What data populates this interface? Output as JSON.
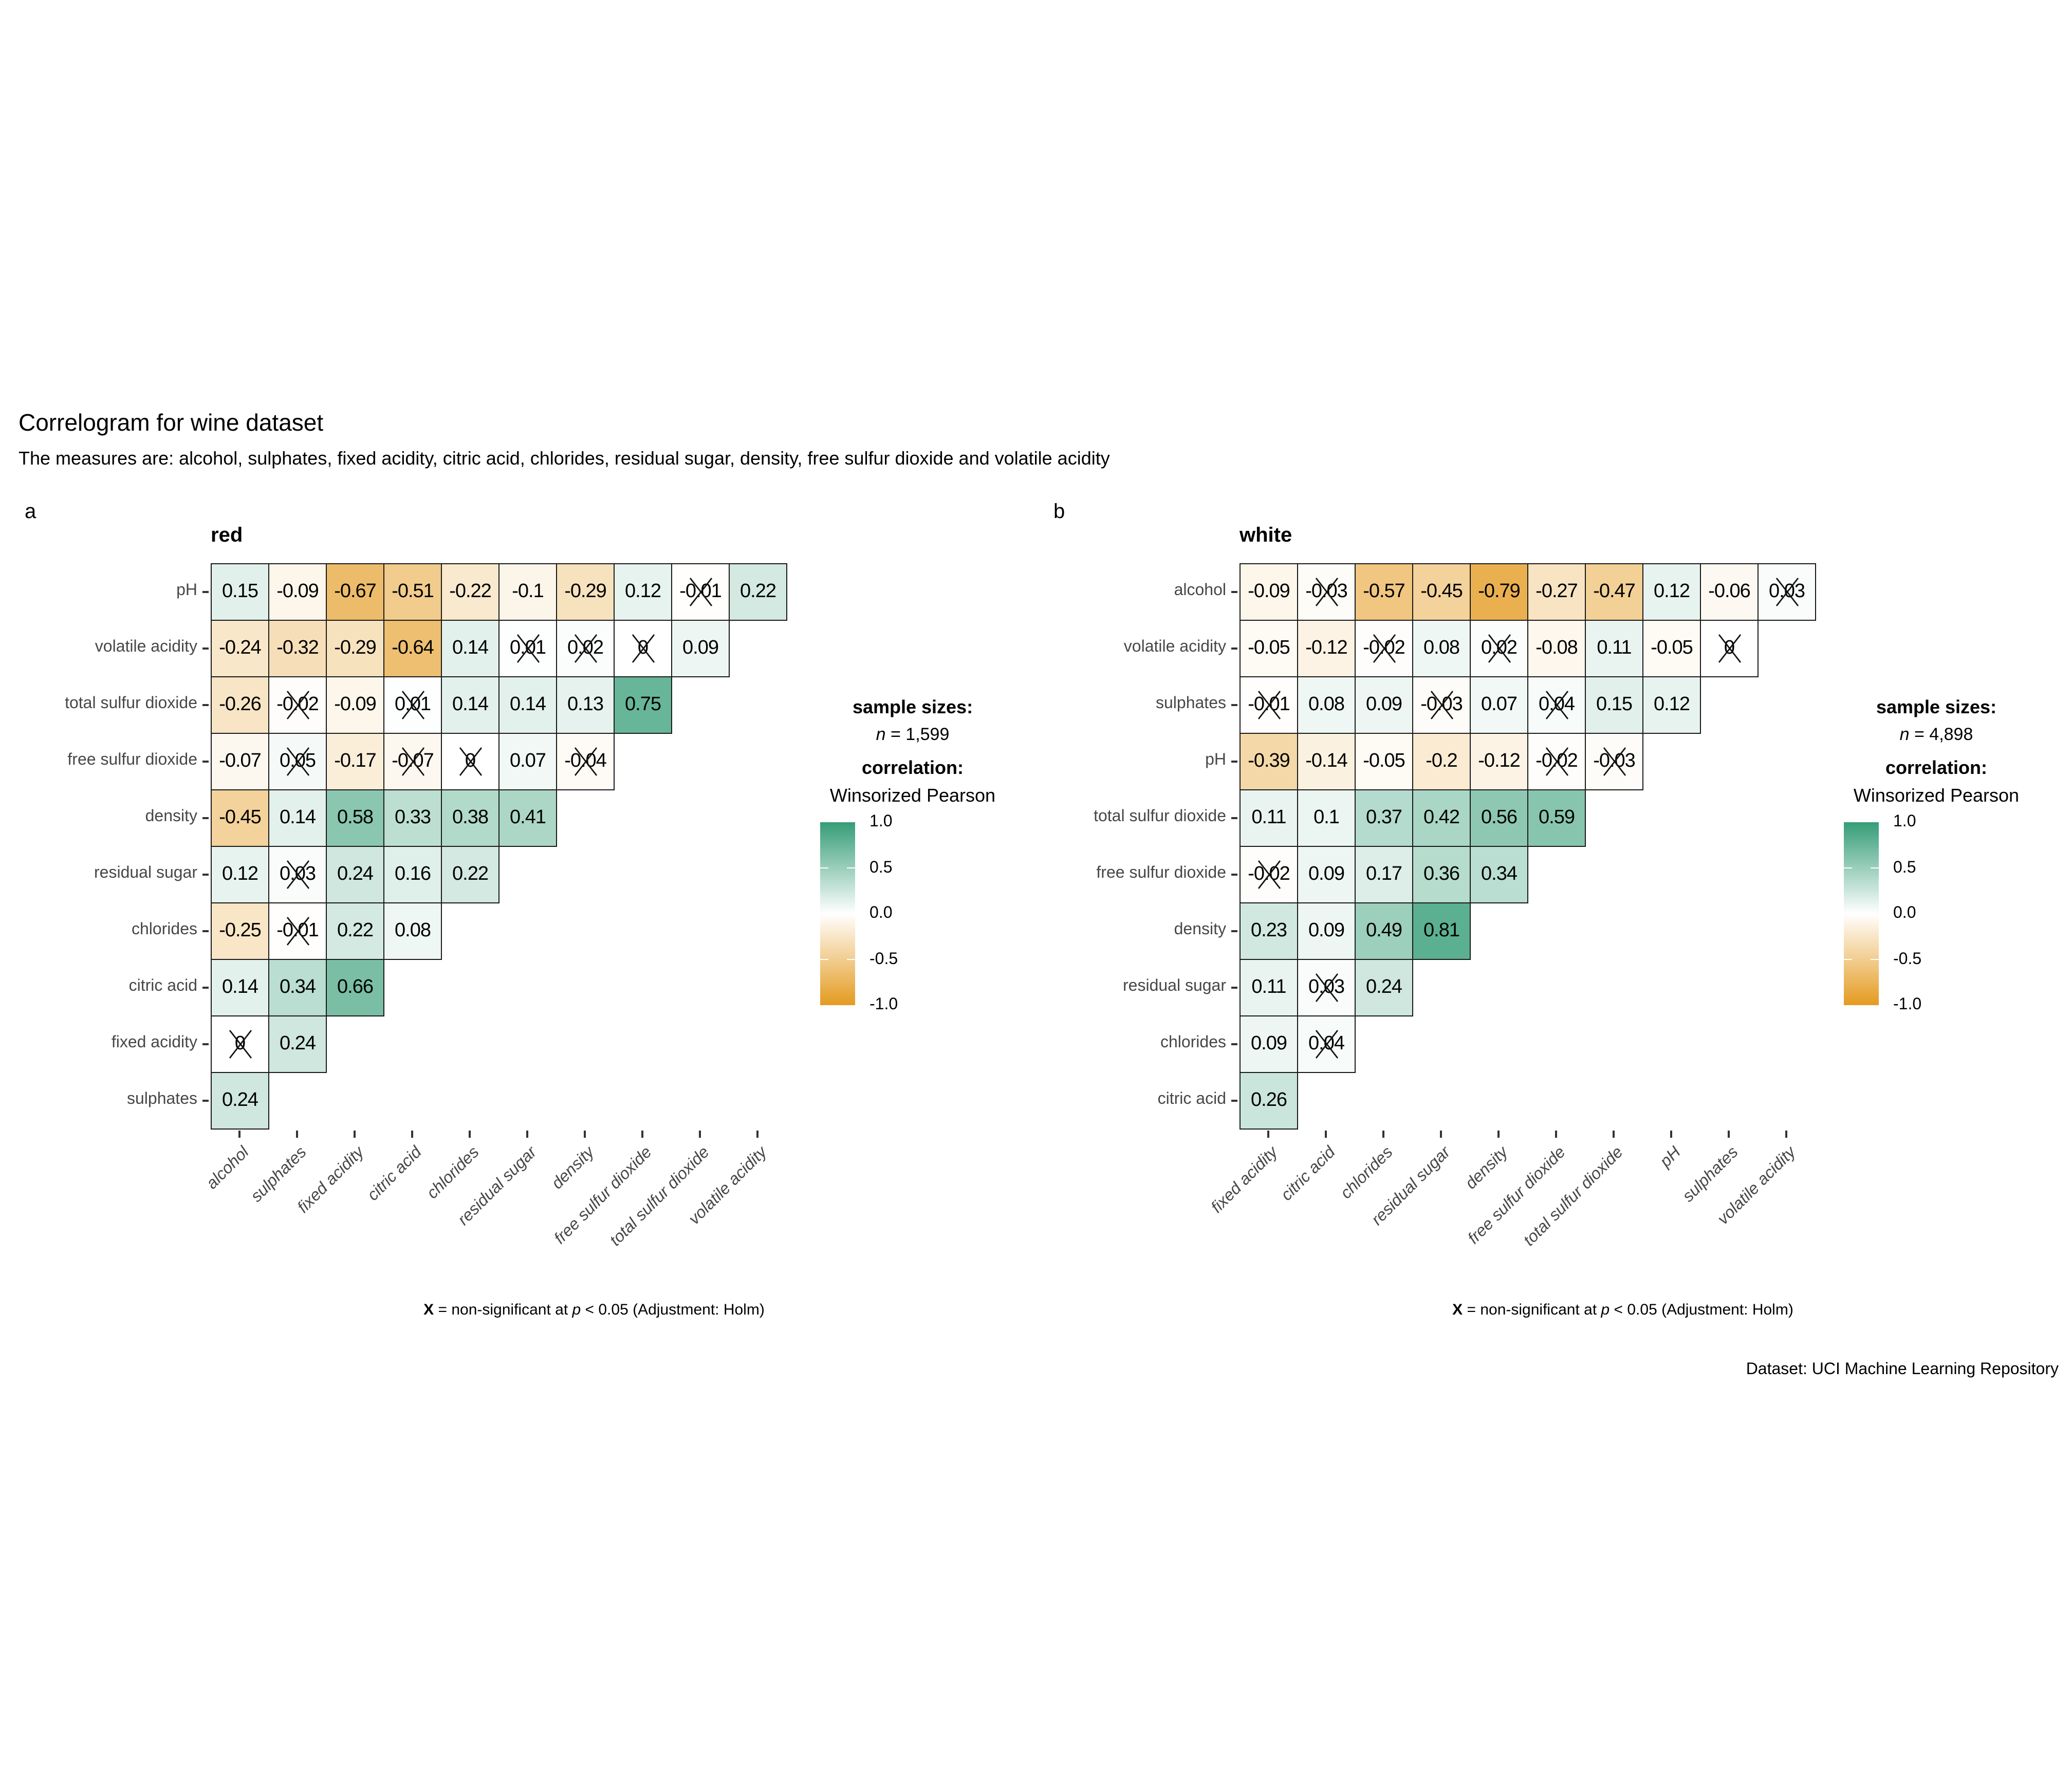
{
  "title": "Correlogram for wine dataset",
  "subtitle": "The measures are: alcohol, sulphates, fixed acidity, citric acid, chlorides, residual sugar, density, free sulfur dioxide and volatile acidity",
  "caption": "Dataset: UCI Machine Learning Repository",
  "footnote": {
    "x_symbol": "X",
    "eq": "=",
    "mid": "non-significant at",
    "p_symbol": "p",
    "tail": "< 0.05 (Adjustment: Holm)"
  },
  "legend": {
    "sample_sizes_label": "sample sizes:",
    "n_symbol": "n",
    "eq": "=",
    "correlation_label": "correlation:",
    "method": "Winsorized Pearson",
    "ticks": [
      "1.0",
      "0.5",
      "0.0",
      "-0.5",
      "-1.0"
    ]
  },
  "colors": {
    "positive_end": "#359D77",
    "negative_end": "#E49B20",
    "midpoint": "#FFFFFF",
    "cell_border": "#1A1A1A",
    "axis_text": "#474747"
  },
  "chart_data": {
    "type": "heatmap",
    "description": "Lower-triangular winsorized Pearson correlation matrices for red and white wine; cells marked ns are crossed out (non-significant at p < 0.05, Holm adjustment).",
    "color_scale": {
      "domain": [
        -1,
        0,
        1
      ],
      "range": [
        "#E49B20",
        "#FFFFFF",
        "#359D77"
      ],
      "legend_ticks": [
        1.0,
        0.5,
        0.0,
        -0.5,
        -1.0
      ]
    },
    "panels": [
      {
        "tag": "a",
        "title": "red",
        "sample_size": "1,599",
        "x_labels": [
          "alcohol",
          "sulphates",
          "fixed acidity",
          "citric acid",
          "chlorides",
          "residual sugar",
          "density",
          "free sulfur dioxide",
          "total sulfur dioxide",
          "volatile acidity"
        ],
        "y_labels": [
          "pH",
          "volatile acidity",
          "total sulfur dioxide",
          "free sulfur dioxide",
          "density",
          "residual sugar",
          "chlorides",
          "citric acid",
          "fixed acidity",
          "sulphates"
        ],
        "rows": [
          [
            {
              "r": "0.15",
              "ns": false
            },
            {
              "r": "-0.09",
              "ns": false
            },
            {
              "r": "-0.67",
              "ns": false
            },
            {
              "r": "-0.51",
              "ns": false
            },
            {
              "r": "-0.22",
              "ns": false
            },
            {
              "r": "-0.1",
              "ns": false
            },
            {
              "r": "-0.29",
              "ns": false
            },
            {
              "r": "0.12",
              "ns": false
            },
            {
              "r": "-0.01",
              "ns": true
            },
            {
              "r": "0.22",
              "ns": false
            }
          ],
          [
            {
              "r": "-0.24",
              "ns": false
            },
            {
              "r": "-0.32",
              "ns": false
            },
            {
              "r": "-0.29",
              "ns": false
            },
            {
              "r": "-0.64",
              "ns": false
            },
            {
              "r": "0.14",
              "ns": false
            },
            {
              "r": "0.01",
              "ns": true
            },
            {
              "r": "0.02",
              "ns": true
            },
            {
              "r": "0",
              "ns": true
            },
            {
              "r": "0.09",
              "ns": false
            }
          ],
          [
            {
              "r": "-0.26",
              "ns": false
            },
            {
              "r": "-0.02",
              "ns": true
            },
            {
              "r": "-0.09",
              "ns": false
            },
            {
              "r": "0.01",
              "ns": true
            },
            {
              "r": "0.14",
              "ns": false
            },
            {
              "r": "0.14",
              "ns": false
            },
            {
              "r": "0.13",
              "ns": false
            },
            {
              "r": "0.75",
              "ns": false
            }
          ],
          [
            {
              "r": "-0.07",
              "ns": false
            },
            {
              "r": "0.05",
              "ns": true
            },
            {
              "r": "-0.17",
              "ns": false
            },
            {
              "r": "-0.07",
              "ns": true
            },
            {
              "r": "0",
              "ns": true
            },
            {
              "r": "0.07",
              "ns": false
            },
            {
              "r": "-0.04",
              "ns": true
            }
          ],
          [
            {
              "r": "-0.45",
              "ns": false
            },
            {
              "r": "0.14",
              "ns": false
            },
            {
              "r": "0.58",
              "ns": false
            },
            {
              "r": "0.33",
              "ns": false
            },
            {
              "r": "0.38",
              "ns": false
            },
            {
              "r": "0.41",
              "ns": false
            }
          ],
          [
            {
              "r": "0.12",
              "ns": false
            },
            {
              "r": "0.03",
              "ns": true
            },
            {
              "r": "0.24",
              "ns": false
            },
            {
              "r": "0.16",
              "ns": false
            },
            {
              "r": "0.22",
              "ns": false
            }
          ],
          [
            {
              "r": "-0.25",
              "ns": false
            },
            {
              "r": "-0.01",
              "ns": true
            },
            {
              "r": "0.22",
              "ns": false
            },
            {
              "r": "0.08",
              "ns": false
            }
          ],
          [
            {
              "r": "0.14",
              "ns": false
            },
            {
              "r": "0.34",
              "ns": false
            },
            {
              "r": "0.66",
              "ns": false
            }
          ],
          [
            {
              "r": "0",
              "ns": true
            },
            {
              "r": "0.24",
              "ns": false
            }
          ],
          [
            {
              "r": "0.24",
              "ns": false
            }
          ]
        ]
      },
      {
        "tag": "b",
        "title": "white",
        "sample_size": "4,898",
        "x_labels": [
          "fixed acidity",
          "citric acid",
          "chlorides",
          "residual sugar",
          "density",
          "free sulfur dioxide",
          "total sulfur dioxide",
          "pH",
          "sulphates",
          "volatile acidity"
        ],
        "y_labels": [
          "alcohol",
          "volatile acidity",
          "sulphates",
          "pH",
          "total sulfur dioxide",
          "free sulfur dioxide",
          "density",
          "residual sugar",
          "chlorides",
          "citric acid"
        ],
        "rows": [
          [
            {
              "r": "-0.09",
              "ns": false
            },
            {
              "r": "-0.03",
              "ns": true
            },
            {
              "r": "-0.57",
              "ns": false
            },
            {
              "r": "-0.45",
              "ns": false
            },
            {
              "r": "-0.79",
              "ns": false
            },
            {
              "r": "-0.27",
              "ns": false
            },
            {
              "r": "-0.47",
              "ns": false
            },
            {
              "r": "0.12",
              "ns": false
            },
            {
              "r": "-0.06",
              "ns": false
            },
            {
              "r": "0.03",
              "ns": true
            }
          ],
          [
            {
              "r": "-0.05",
              "ns": false
            },
            {
              "r": "-0.12",
              "ns": false
            },
            {
              "r": "-0.02",
              "ns": true
            },
            {
              "r": "0.08",
              "ns": false
            },
            {
              "r": "0.02",
              "ns": true
            },
            {
              "r": "-0.08",
              "ns": false
            },
            {
              "r": "0.11",
              "ns": false
            },
            {
              "r": "-0.05",
              "ns": false
            },
            {
              "r": "0",
              "ns": true
            }
          ],
          [
            {
              "r": "-0.01",
              "ns": true
            },
            {
              "r": "0.08",
              "ns": false
            },
            {
              "r": "0.09",
              "ns": false
            },
            {
              "r": "-0.03",
              "ns": true
            },
            {
              "r": "0.07",
              "ns": false
            },
            {
              "r": "0.04",
              "ns": true
            },
            {
              "r": "0.15",
              "ns": false
            },
            {
              "r": "0.12",
              "ns": false
            }
          ],
          [
            {
              "r": "-0.39",
              "ns": false
            },
            {
              "r": "-0.14",
              "ns": false
            },
            {
              "r": "-0.05",
              "ns": false
            },
            {
              "r": "-0.2",
              "ns": false
            },
            {
              "r": "-0.12",
              "ns": false
            },
            {
              "r": "-0.02",
              "ns": true
            },
            {
              "r": "-0.03",
              "ns": true
            }
          ],
          [
            {
              "r": "0.11",
              "ns": false
            },
            {
              "r": "0.1",
              "ns": false
            },
            {
              "r": "0.37",
              "ns": false
            },
            {
              "r": "0.42",
              "ns": false
            },
            {
              "r": "0.56",
              "ns": false
            },
            {
              "r": "0.59",
              "ns": false
            }
          ],
          [
            {
              "r": "-0.02",
              "ns": true
            },
            {
              "r": "0.09",
              "ns": false
            },
            {
              "r": "0.17",
              "ns": false
            },
            {
              "r": "0.36",
              "ns": false
            },
            {
              "r": "0.34",
              "ns": false
            }
          ],
          [
            {
              "r": "0.23",
              "ns": false
            },
            {
              "r": "0.09",
              "ns": false
            },
            {
              "r": "0.49",
              "ns": false
            },
            {
              "r": "0.81",
              "ns": false
            }
          ],
          [
            {
              "r": "0.11",
              "ns": false
            },
            {
              "r": "0.03",
              "ns": true
            },
            {
              "r": "0.24",
              "ns": false
            }
          ],
          [
            {
              "r": "0.09",
              "ns": false
            },
            {
              "r": "0.04",
              "ns": true
            }
          ],
          [
            {
              "r": "0.26",
              "ns": false
            }
          ]
        ]
      }
    ]
  }
}
